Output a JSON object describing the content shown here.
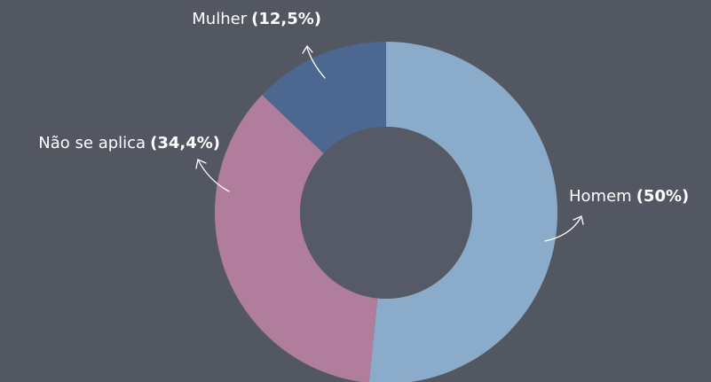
{
  "chart_data": {
    "type": "donut",
    "categories": [
      "Homem",
      "Não se aplica",
      "Mulher"
    ],
    "values": [
      50,
      34.4,
      12.5
    ],
    "value_labels": [
      "(50%)",
      "(34,4%)",
      "(12,5%)"
    ],
    "colors": [
      "#8aabc9",
      "#b07d9d",
      "#4d6890"
    ]
  }
}
